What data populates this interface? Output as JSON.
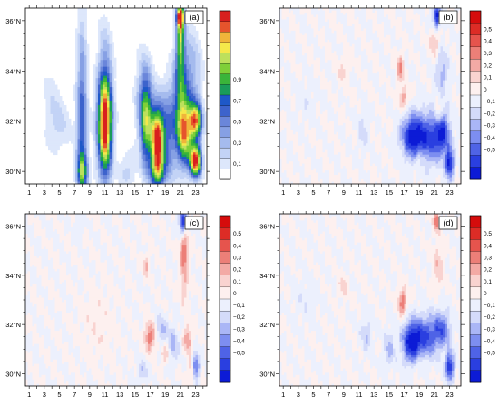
{
  "chart_data": [
    {
      "panel_label": "(a)",
      "type": "heatmap",
      "x_ticks": [
        "1",
        "3",
        "5",
        "7",
        "9",
        "11",
        "13",
        "15",
        "17",
        "19",
        "21",
        "23"
      ],
      "y_ticks": [
        "30°N",
        "32°N",
        "34°N",
        "36°N"
      ],
      "xlim": [
        0.5,
        24.5
      ],
      "ylim": [
        29.5,
        36.5
      ],
      "colorbar_labels": [
        "0,1",
        "0,3",
        "0,5",
        "0,7",
        "0,9"
      ],
      "colorbar_range": [
        0,
        1
      ],
      "colorbar_colors": [
        "#ffffff",
        "#dde7fb",
        "#c3d3f6",
        "#a5bbee",
        "#86a0e4",
        "#6a86da",
        "#3d63cc",
        "#1e58c8",
        "#1a9b5a",
        "#3ab43a",
        "#7fcf38",
        "#bde05c",
        "#f5e84a",
        "#f0b43a",
        "#e6542c",
        "#d8201e"
      ],
      "features": [
        {
          "x": 8,
          "y": 31.2,
          "amp": 0.45,
          "sx": 0.5,
          "sy": 3.2
        },
        {
          "x": 8,
          "y": 30.0,
          "amp": 0.35,
          "sx": 0.5,
          "sy": 0.4
        },
        {
          "x": 11,
          "y": 31.8,
          "amp": 0.95,
          "sx": 0.65,
          "sy": 1.4
        },
        {
          "x": 11,
          "y": 33.4,
          "amp": 0.2,
          "sx": 0.7,
          "sy": 2.0
        },
        {
          "x": 5,
          "y": 31.8,
          "amp": 0.12,
          "sx": 1.2,
          "sy": 0.8
        },
        {
          "x": 4,
          "y": 33.2,
          "amp": 0.08,
          "sx": 1.0,
          "sy": 1.2
        },
        {
          "x": 16.5,
          "y": 31.8,
          "amp": 0.55,
          "sx": 0.6,
          "sy": 1.2
        },
        {
          "x": 16.2,
          "y": 33.0,
          "amp": 0.25,
          "sx": 0.8,
          "sy": 1.2
        },
        {
          "x": 18,
          "y": 31.3,
          "amp": 0.95,
          "sx": 0.6,
          "sy": 0.9
        },
        {
          "x": 18,
          "y": 30.0,
          "amp": 0.5,
          "sx": 0.7,
          "sy": 0.5
        },
        {
          "x": 19.5,
          "y": 31.6,
          "amp": 0.35,
          "sx": 0.8,
          "sy": 1.4
        },
        {
          "x": 21,
          "y": 36.2,
          "amp": 0.9,
          "sx": 0.35,
          "sy": 0.35
        },
        {
          "x": 21,
          "y": 35.3,
          "amp": 0.55,
          "sx": 0.35,
          "sy": 0.7
        },
        {
          "x": 21,
          "y": 33.5,
          "amp": 0.45,
          "sx": 0.6,
          "sy": 1.2
        },
        {
          "x": 21.5,
          "y": 31.5,
          "amp": 0.75,
          "sx": 0.7,
          "sy": 0.9
        },
        {
          "x": 23,
          "y": 32.0,
          "amp": 0.75,
          "sx": 0.6,
          "sy": 0.5
        },
        {
          "x": 23,
          "y": 30.4,
          "amp": 0.95,
          "sx": 0.55,
          "sy": 0.45
        },
        {
          "x": 22.5,
          "y": 33.6,
          "amp": 0.25,
          "sx": 0.9,
          "sy": 1.5
        },
        {
          "x": 14,
          "y": 30.0,
          "amp": 0.15,
          "sx": 0.8,
          "sy": 0.6
        }
      ]
    },
    {
      "panel_label": "(b)",
      "type": "heatmap",
      "x_ticks": [
        "1",
        "3",
        "5",
        "7",
        "9",
        "11",
        "13",
        "15",
        "17",
        "19",
        "21",
        "23"
      ],
      "y_ticks": [
        "30°N",
        "32°N",
        "34°N",
        "36°N"
      ],
      "xlim": [
        0.5,
        24.5
      ],
      "ylim": [
        29.5,
        36.5
      ],
      "colorbar_labels": [
        "0,5",
        "0,4",
        "0,3",
        "0,2",
        "0,1",
        "0",
        "−0,1",
        "−0,2",
        "−0,3",
        "−0,4",
        "−0,5"
      ],
      "colorbar_range": [
        -0.55,
        0.55
      ],
      "colorbar_colors": [
        "#0c1bd6",
        "#2a3fe0",
        "#4f63e6",
        "#7d8ef0",
        "#aab6f6",
        "#d4dbfa",
        "#ecf0fd",
        "#fdf0ef",
        "#f9d3d0",
        "#f3aaa5",
        "#ec7f78",
        "#e6544d",
        "#dd2c26",
        "#d50c0c"
      ],
      "features": [
        {
          "x": 18,
          "y": 31.4,
          "amp": -0.45,
          "sx": 1.0,
          "sy": 0.6
        },
        {
          "x": 20,
          "y": 31.3,
          "amp": -0.38,
          "sx": 1.2,
          "sy": 0.7
        },
        {
          "x": 22,
          "y": 31.5,
          "amp": -0.42,
          "sx": 0.8,
          "sy": 0.6
        },
        {
          "x": 23,
          "y": 30.3,
          "amp": -0.5,
          "sx": 0.4,
          "sy": 0.4
        },
        {
          "x": 21.3,
          "y": 36.2,
          "amp": -0.5,
          "sx": 0.35,
          "sy": 0.35
        },
        {
          "x": 22,
          "y": 34.0,
          "amp": -0.2,
          "sx": 0.6,
          "sy": 0.6
        },
        {
          "x": 16.5,
          "y": 34.1,
          "amp": 0.25,
          "sx": 0.3,
          "sy": 0.4
        },
        {
          "x": 17,
          "y": 32.9,
          "amp": 0.22,
          "sx": 0.4,
          "sy": 0.3
        },
        {
          "x": 21,
          "y": 35.1,
          "amp": 0.18,
          "sx": 0.4,
          "sy": 0.4
        },
        {
          "x": 21.5,
          "y": 32.3,
          "amp": 0.2,
          "sx": 0.3,
          "sy": 0.3
        },
        {
          "x": 19,
          "y": 30.5,
          "amp": 0.15,
          "sx": 0.5,
          "sy": 0.3
        },
        {
          "x": 11.5,
          "y": 31.6,
          "amp": -0.12,
          "sx": 0.5,
          "sy": 0.5
        },
        {
          "x": 9,
          "y": 34.0,
          "amp": 0.1,
          "sx": 0.5,
          "sy": 0.4
        },
        {
          "x": 4,
          "y": 32.8,
          "amp": -0.06,
          "sx": 1.0,
          "sy": 0.5
        }
      ]
    },
    {
      "panel_label": "(c)",
      "type": "heatmap",
      "x_ticks": [
        "1",
        "3",
        "5",
        "7",
        "9",
        "11",
        "13",
        "15",
        "17",
        "19",
        "21",
        "23"
      ],
      "y_ticks": [
        "30°N",
        "32°N",
        "34°N",
        "36°N"
      ],
      "xlim": [
        0.5,
        24.5
      ],
      "ylim": [
        29.5,
        36.5
      ],
      "colorbar_labels": [
        "0,5",
        "0,4",
        "0,3",
        "0,2",
        "0,1",
        "0",
        "−0,1",
        "−0,2",
        "−0,3",
        "−0,4",
        "−0,5"
      ],
      "colorbar_range": [
        -0.55,
        0.55
      ],
      "colorbar_colors": [
        "#0c1bd6",
        "#2a3fe0",
        "#4f63e6",
        "#7d8ef0",
        "#aab6f6",
        "#d4dbfa",
        "#ecf0fd",
        "#fdf0ef",
        "#f9d3d0",
        "#f3aaa5",
        "#ec7f78",
        "#e6544d",
        "#dd2c26",
        "#d50c0c"
      ],
      "features": [
        {
          "x": 21.3,
          "y": 36.2,
          "amp": -0.45,
          "sx": 0.35,
          "sy": 0.35
        },
        {
          "x": 21.5,
          "y": 35.0,
          "amp": 0.28,
          "sx": 0.4,
          "sy": 0.5
        },
        {
          "x": 21.5,
          "y": 33.8,
          "amp": 0.15,
          "sx": 0.4,
          "sy": 0.7
        },
        {
          "x": 17,
          "y": 31.5,
          "amp": 0.3,
          "sx": 0.5,
          "sy": 0.4
        },
        {
          "x": 16.5,
          "y": 34.4,
          "amp": 0.18,
          "sx": 0.3,
          "sy": 0.3
        },
        {
          "x": 18.5,
          "y": 31.8,
          "amp": -0.18,
          "sx": 0.5,
          "sy": 0.4
        },
        {
          "x": 20,
          "y": 31.2,
          "amp": -0.2,
          "sx": 0.5,
          "sy": 0.5
        },
        {
          "x": 22,
          "y": 31.4,
          "amp": 0.22,
          "sx": 0.4,
          "sy": 0.4
        },
        {
          "x": 23,
          "y": 30.3,
          "amp": -0.4,
          "sx": 0.35,
          "sy": 0.35
        },
        {
          "x": 22.5,
          "y": 30.2,
          "amp": 0.2,
          "sx": 0.3,
          "sy": 0.3
        },
        {
          "x": 19,
          "y": 30.8,
          "amp": 0.15,
          "sx": 0.4,
          "sy": 0.3
        },
        {
          "x": 16,
          "y": 30.1,
          "amp": -0.15,
          "sx": 0.5,
          "sy": 0.3
        },
        {
          "x": 10,
          "y": 32.0,
          "amp": 0.06,
          "sx": 1.5,
          "sy": 1.0
        },
        {
          "x": 7.5,
          "y": 35.9,
          "amp": -0.12,
          "sx": 0.3,
          "sy": 0.3
        }
      ]
    },
    {
      "panel_label": "(d)",
      "type": "heatmap",
      "x_ticks": [
        "1",
        "3",
        "5",
        "7",
        "9",
        "11",
        "13",
        "15",
        "17",
        "19",
        "21",
        "23"
      ],
      "y_ticks": [
        "30°N",
        "32°N",
        "34°N",
        "36°N"
      ],
      "xlim": [
        0.5,
        24.5
      ],
      "ylim": [
        29.5,
        36.5
      ],
      "colorbar_labels": [
        "0,5",
        "0,4",
        "0,3",
        "0,2",
        "0,1",
        "0",
        "−0,1",
        "−0,2",
        "−0,3",
        "−0,4",
        "−0,5"
      ],
      "colorbar_range": [
        -0.55,
        0.55
      ],
      "colorbar_colors": [
        "#0c1bd6",
        "#2a3fe0",
        "#4f63e6",
        "#7d8ef0",
        "#aab6f6",
        "#d4dbfa",
        "#ecf0fd",
        "#fdf0ef",
        "#f9d3d0",
        "#f3aaa5",
        "#ec7f78",
        "#e6544d",
        "#dd2c26",
        "#d50c0c"
      ],
      "features": [
        {
          "x": 18,
          "y": 31.3,
          "amp": -0.5,
          "sx": 0.9,
          "sy": 0.6
        },
        {
          "x": 20,
          "y": 31.5,
          "amp": -0.35,
          "sx": 1.1,
          "sy": 0.6
        },
        {
          "x": 22,
          "y": 31.8,
          "amp": -0.32,
          "sx": 0.8,
          "sy": 0.5
        },
        {
          "x": 23,
          "y": 30.3,
          "amp": -0.48,
          "sx": 0.4,
          "sy": 0.4
        },
        {
          "x": 16.8,
          "y": 32.9,
          "amp": 0.3,
          "sx": 0.4,
          "sy": 0.4
        },
        {
          "x": 21.3,
          "y": 36.2,
          "amp": 0.3,
          "sx": 0.3,
          "sy": 0.3
        },
        {
          "x": 21.5,
          "y": 34.4,
          "amp": 0.15,
          "sx": 0.5,
          "sy": 0.6
        },
        {
          "x": 15,
          "y": 31.0,
          "amp": -0.18,
          "sx": 0.5,
          "sy": 0.5
        },
        {
          "x": 12,
          "y": 31.6,
          "amp": -0.15,
          "sx": 0.5,
          "sy": 0.5
        },
        {
          "x": 9,
          "y": 33.5,
          "amp": 0.15,
          "sx": 0.4,
          "sy": 0.3
        },
        {
          "x": 19,
          "y": 30.4,
          "amp": 0.12,
          "sx": 0.5,
          "sy": 0.3
        },
        {
          "x": 4,
          "y": 33.0,
          "amp": -0.06,
          "sx": 1.2,
          "sy": 0.6
        }
      ]
    }
  ]
}
